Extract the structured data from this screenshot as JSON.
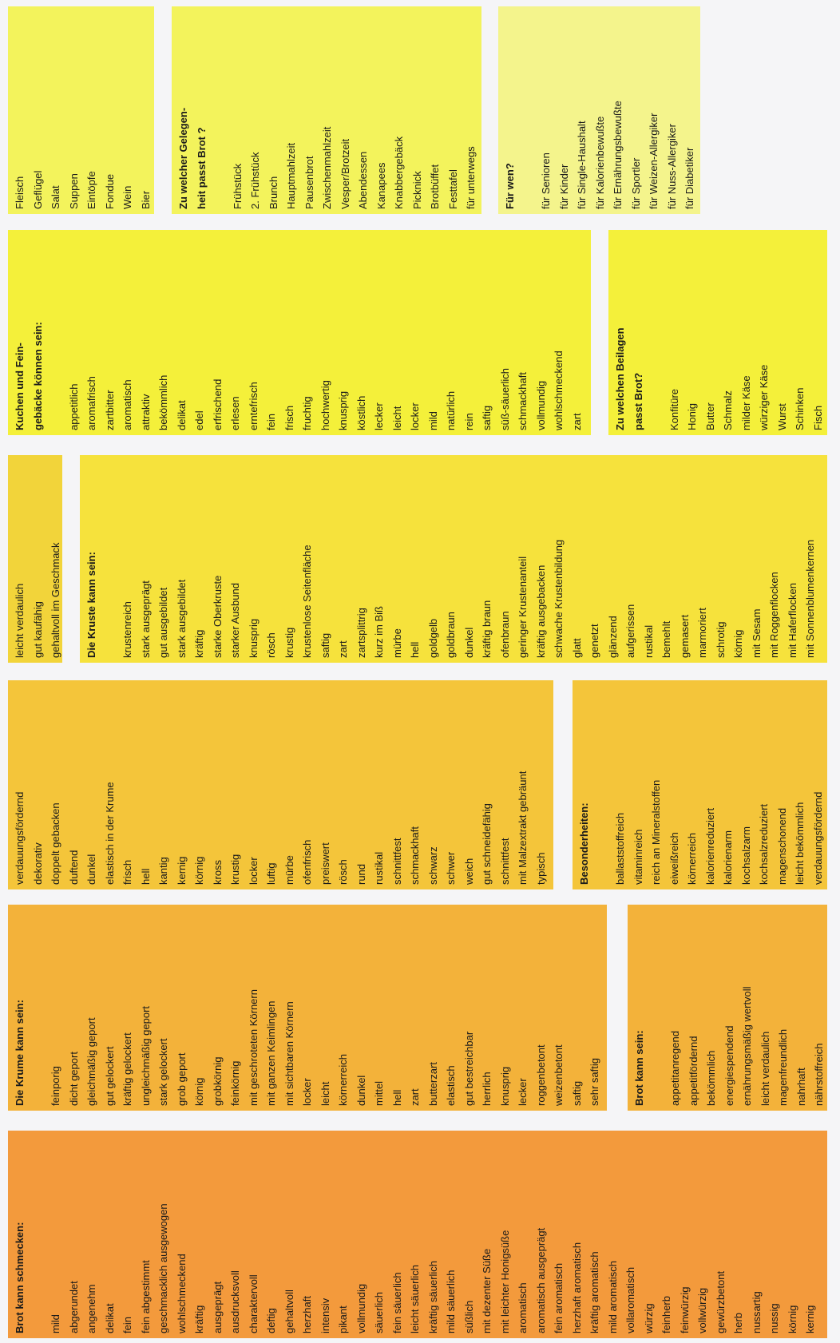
{
  "cards": [
    {
      "id": "accompaniments",
      "title": [],
      "items": [
        "Fleisch",
        "Geflügel",
        "Salat",
        "Suppen",
        "Eintöpfe",
        "Fondue",
        "Wein",
        "Bier"
      ],
      "color": "#f3f35c"
    },
    {
      "id": "occasions",
      "title": [
        "Zu welcher Gelegen-",
        "heit passt Brot ?"
      ],
      "items": [
        "Frühstück",
        "2. Frühstück",
        "Brunch",
        "Hauptmahlzeit",
        "Pausenbrot",
        "Zwischenmahlzeit",
        "Vesper/Brotzeit",
        "Abendessen",
        "Kanapees",
        "Knabbergebäck",
        "Picknick",
        "Brotbüffet",
        "Festtafel",
        "für unterwegs"
      ],
      "color": "#f3f35c"
    },
    {
      "id": "for-whom",
      "title": [
        "Für wen?"
      ],
      "items": [
        "für Senioren",
        "für Kinder",
        "für Single-Haushalt",
        "für Kalorienbewußte",
        "für Ernährungsbewußte",
        "für Sportler",
        "für Weizen-Allergiker",
        "für Nuss-Allergiker",
        "für Diabetiker"
      ],
      "color": "#f4f48c"
    },
    {
      "id": "cakes",
      "title": [
        "Kuchen und Fein-",
        "gebäcke können sein:"
      ],
      "items": [
        "appetitlich",
        "aromafrisch",
        "zartbitter",
        "aromatisch",
        "attraktiv",
        "bekömmlich",
        "delikat",
        "edel",
        "erfrischend",
        "erlesen",
        "erntefrisch",
        "fein",
        "frisch",
        "fruchtig",
        "hochwertig",
        "knusprig",
        "köstlich",
        "lecker",
        "leicht",
        "locker",
        "mild",
        "natürlich",
        "rein",
        "saftig",
        "süß-säuerlich",
        "schmackhaft",
        "vollmundig",
        "wohlschmeckend",
        "zart"
      ],
      "color": "#f4f03a"
    },
    {
      "id": "toppings",
      "title": [
        "Zu welchen Beilagen",
        "passt Brot?"
      ],
      "items": [
        "Konfitüre",
        "Honig",
        "Butter",
        "Schmalz",
        "milder Käse",
        "würziger Käse",
        "Wurst",
        "Schinken",
        "Fisch"
      ],
      "color": "#f4f03a"
    },
    {
      "id": "misc-short",
      "title": [],
      "items": [
        "leicht verdaulich",
        "gut kaufähig",
        "gehaltvoll im Geschmack"
      ],
      "color": "#f2d43a"
    },
    {
      "id": "crust",
      "title": [
        "Die Kruste kann sein:"
      ],
      "items": [
        "krustenreich",
        "stark ausgeprägt",
        "gut ausgebildet",
        "stark ausgebildet",
        "kräftig",
        "starke Oberkruste",
        "starker Ausbund",
        "knusprig",
        "rösch",
        "krustig",
        "krustenlose Seitenfläche",
        "saftig",
        "zart",
        "zartsplittrig",
        "kurz im Biß",
        "mürbe",
        "hell",
        "goldgelb",
        "goldbraun",
        "dunkel",
        "kräftig braun",
        "ofenbraun",
        "geringer Krustenanteil",
        "kräftig ausgebacken",
        "schwache Krustenbildung",
        "glatt",
        "genetzt",
        "glänzend",
        "aufgerissen",
        "rustikal",
        "bemehlt",
        "gemasert",
        "marmoriert",
        "schrotig",
        "körnig",
        "mit Sesam",
        "mit Roggenflocken",
        "mit Haferflocken",
        "mit Sonnenblumenkernen"
      ],
      "color": "#f6e23c"
    },
    {
      "id": "bread-general",
      "title": [],
      "items": [
        "verdauungsfördernd",
        "dekorativ",
        "doppelt gebacken",
        "duftend",
        "dunkel",
        "elastisch in der Krume",
        "frisch",
        "hell",
        "kantig",
        "kernig",
        "körnig",
        "kross",
        "krustig",
        "locker",
        "luftig",
        "mürbe",
        "ofenfrisch",
        "preiswert",
        "rösch",
        "rund",
        "rustikal",
        "schnittfest",
        "schmackhaft",
        "schwarz",
        "schwer",
        "weich",
        "gut schneidefähig",
        "schnittfest",
        "mit Malzextrakt gebräunt",
        "typisch"
      ],
      "color": "#f4c53a"
    },
    {
      "id": "specials",
      "title": [
        "Besonderheiten:"
      ],
      "items": [
        "ballaststoffreich",
        "vitaminreich",
        "reich an Mineralstoffen",
        "eiweißreich",
        "körnerreich",
        "kalorienreduziert",
        "kalorienarm",
        "kochsalzarm",
        "kochsalzreduziert",
        "magenschonend",
        "leicht bekömmlich",
        "verdauungsfördernd"
      ],
      "color": "#f4c53a"
    },
    {
      "id": "crumb",
      "title": [
        "Die Krume kann sein:"
      ],
      "items": [
        "feinporig",
        "dicht geport",
        "gleichmäßig geport",
        "gut gelockert",
        "kräftig gelockert",
        "ungleichmäßig geport",
        "stark gelockert",
        "grob geport",
        "körnig",
        "grobkörnig",
        "feinkörnig",
        "mit geschroteten Körnern",
        "mit ganzen Keimlingen",
        "mit sichtbaren Körnern",
        "locker",
        "leicht",
        "körnerreich",
        "dunkel",
        "mittel",
        "hell",
        "zart",
        "butterzart",
        "elastisch",
        "gut bestreichbar",
        "herrlich",
        "knusprig",
        "lecker",
        "roggenbetont",
        "weizenbetont",
        "saftig",
        "sehr saftig"
      ],
      "color": "#f3b23a"
    },
    {
      "id": "bread-can-be",
      "title": [
        "Brot kann sein:"
      ],
      "items": [
        "appetitanregend",
        "appetitfördernd",
        "bekömmlich",
        "energiespendend",
        "ernährungsmäßig wertvoll",
        "leicht verdaulich",
        "magenfreundlich",
        "nahrhaft",
        "nährstoffreich"
      ],
      "color": "#f3b23a"
    },
    {
      "id": "taste",
      "title": [
        "Brot kann schmecken:"
      ],
      "items": [
        "mild",
        "abgerundet",
        "angenehm",
        "delikat",
        "fein",
        "fein abgestimmt",
        "geschmacklich ausgewogen",
        "wohlschmeckend",
        "kräftig",
        "ausgeprägt",
        "ausdrucksvoll",
        "charaktervoll",
        "deftig",
        "gehaltvoll",
        "herzhaft",
        "intensiv",
        "pikant",
        "vollmundig",
        "säuerlich",
        "fein säuerlich",
        "leicht säuerlich",
        "kräftig säuerlich",
        "mild säuerlich",
        "süßlich",
        "mit dezenter Süße",
        "mit leichter Honigsüße",
        "aromatisch",
        "aromatisch ausgeprägt",
        "fein aromatisch",
        "herzhaft aromatisch",
        "kräftig aromatisch",
        "mild aromatisch",
        "vollaromatisch",
        "würzig",
        "feinherb",
        "feinwürzig",
        "vollwürzig",
        "gewürzbetont",
        "herb",
        "nussartig",
        "nussig",
        "körnig",
        "kernig"
      ],
      "color": "#f39a3c"
    }
  ]
}
